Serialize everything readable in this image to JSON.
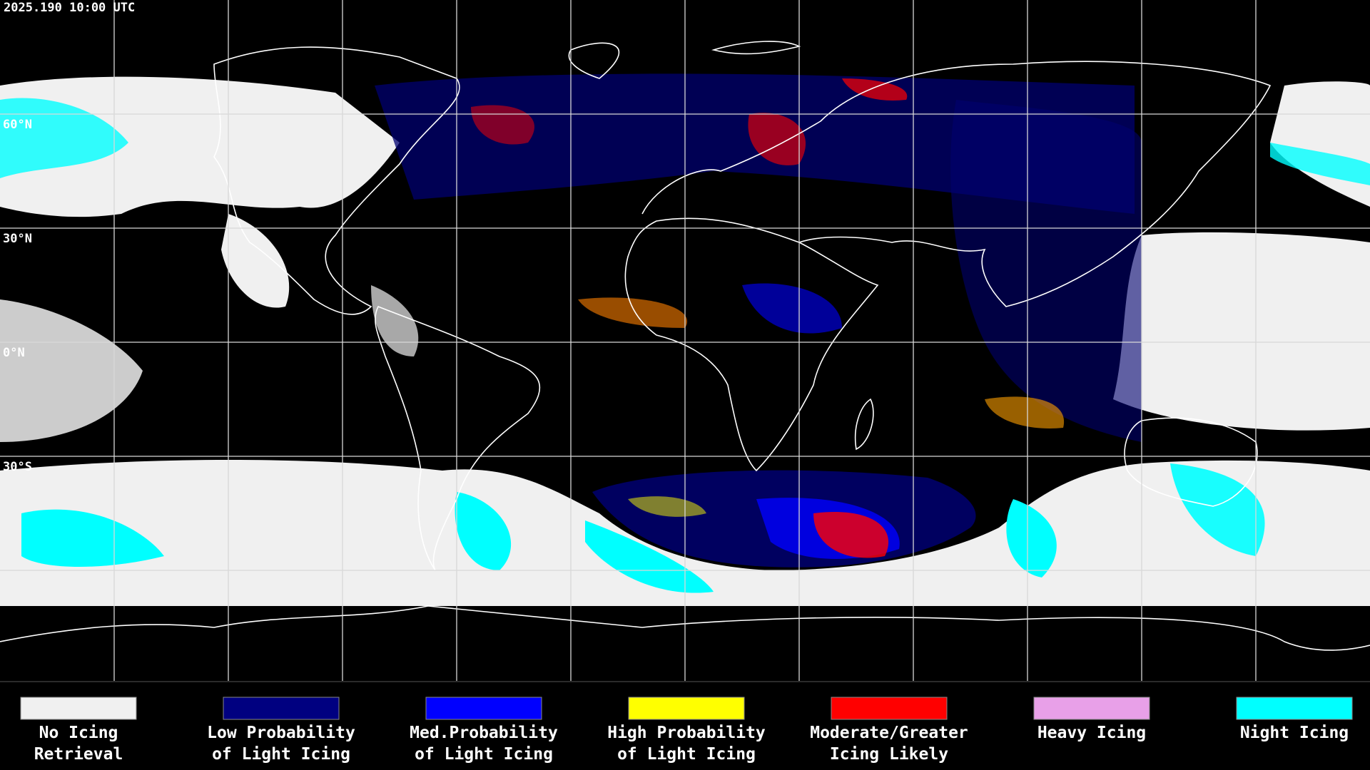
{
  "header": {
    "title": "2025.190 10:00 UTC"
  },
  "map": {
    "latitude_labels": [
      "60°N",
      "30°N",
      "0°N",
      "30°S"
    ]
  },
  "legend": {
    "items": [
      {
        "label": [
          "No Icing",
          "Retrieval"
        ],
        "color": "#f0f0f0"
      },
      {
        "label": [
          "Low Probability",
          "of Light Icing"
        ],
        "color": "#000080"
      },
      {
        "label": [
          "Med.Probability",
          "of Light Icing"
        ],
        "color": "#0000ff"
      },
      {
        "label": [
          "High Probability",
          "of Light Icing"
        ],
        "color": "#ffff00"
      },
      {
        "label": [
          "Moderate/Greater",
          "Icing Likely"
        ],
        "color": "#ff0000"
      },
      {
        "label": [
          "Heavy Icing"
        ],
        "color": "#e8a0e8"
      },
      {
        "label": [
          "Night Icing"
        ],
        "color": "#00ffff"
      }
    ]
  }
}
